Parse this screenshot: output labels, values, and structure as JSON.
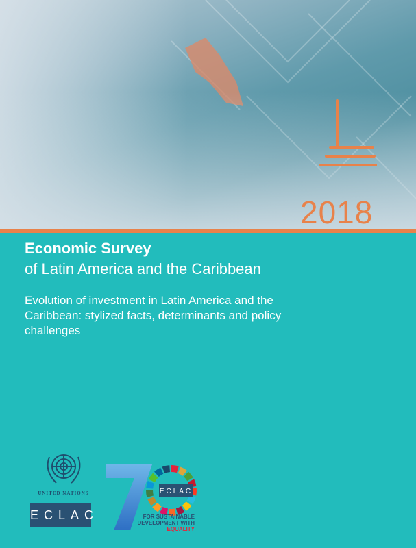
{
  "cover": {
    "year": "2018",
    "title": "Economic Survey",
    "subtitle": "of Latin America and the Caribbean",
    "description": "Evolution of investment in Latin America and the Caribbean: stylized facts, determinants and policy challenges"
  },
  "logos": {
    "un_label": "United Nations",
    "eclac_label": "ECLAC",
    "seventy_number": "70",
    "seventy_eclac": "ECLAC",
    "tagline_line1": "FOR SUSTAINABLE",
    "tagline_line2": "DEVELOPMENT WITH ",
    "tagline_highlight": "EQUALITY"
  },
  "colors": {
    "teal": "#22bcbc",
    "orange": "#e8824a",
    "navy": "#2a5173"
  }
}
